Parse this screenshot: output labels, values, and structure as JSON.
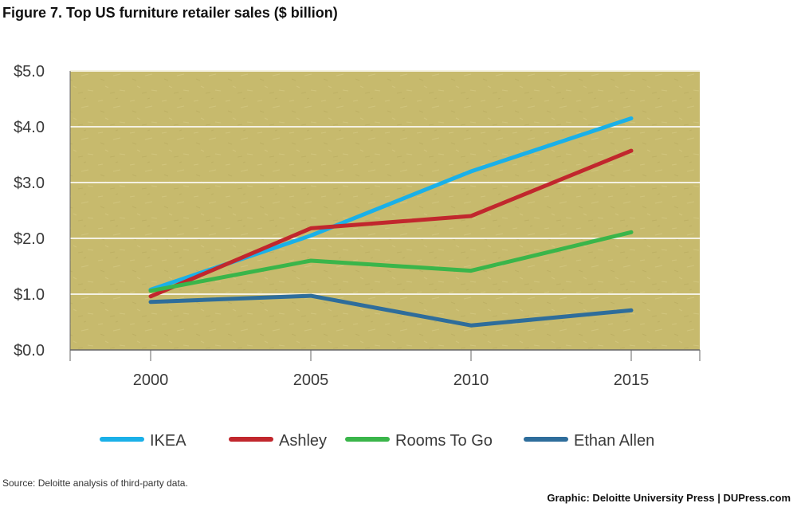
{
  "figure_title": "Figure 7. Top US furniture retailer sales ($ billion)",
  "source": "Source: Deloitte analysis of third-party data.",
  "credit": "Graphic: Deloitte University Press  |  DUPress.com",
  "colors": {
    "plot_background": "#c7ba6d",
    "gridline": "#f4f1e2",
    "axis": "#666666"
  },
  "chart_data": {
    "type": "line",
    "x": [
      "2000",
      "2005",
      "2010",
      "2015"
    ],
    "y_ticks": [
      "$0.0",
      "$1.0",
      "$2.0",
      "$3.0",
      "$4.0",
      "$5.0"
    ],
    "ylim": [
      0,
      5
    ],
    "grid": true,
    "legend_position": "bottom",
    "series": [
      {
        "name": "IKEA",
        "color": "#1ab0e8",
        "values": [
          1.08,
          2.05,
          3.2,
          4.15
        ]
      },
      {
        "name": "Ashley",
        "color": "#c1272d",
        "values": [
          0.96,
          2.18,
          2.4,
          3.57
        ]
      },
      {
        "name": "Rooms To Go",
        "color": "#3ab54a",
        "values": [
          1.06,
          1.6,
          1.42,
          2.11
        ]
      },
      {
        "name": "Ethan Allen",
        "color": "#2e6d9b",
        "values": [
          0.86,
          0.97,
          0.44,
          0.71
        ]
      }
    ]
  }
}
